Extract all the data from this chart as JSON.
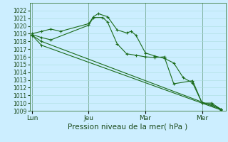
{
  "title": "",
  "xlabel": "Pression niveau de la mer( hPa )",
  "background_color": "#cceeff",
  "grid_color": "#aadddd",
  "line_color": "#1a6b1a",
  "vline_color": "#336633",
  "ylim": [
    1009,
    1023
  ],
  "yticks": [
    1009,
    1010,
    1011,
    1012,
    1013,
    1014,
    1015,
    1016,
    1017,
    1018,
    1019,
    1020,
    1021,
    1022
  ],
  "xtick_labels": [
    "Lun",
    "Jeu",
    "Mar",
    "Mer"
  ],
  "xtick_positions": [
    0,
    12,
    24,
    36
  ],
  "xlim": [
    -0.5,
    41
  ],
  "vline_positions": [
    0,
    12,
    24,
    36
  ],
  "line1_x": [
    0,
    2,
    4,
    6,
    12,
    13,
    14,
    16,
    18,
    20,
    21,
    22,
    24,
    26,
    28,
    30,
    32,
    34,
    36,
    38,
    40
  ],
  "line1_y": [
    1019.0,
    1019.3,
    1019.6,
    1019.3,
    1020.3,
    1021.2,
    1021.6,
    1021.2,
    1019.5,
    1019.1,
    1019.3,
    1018.8,
    1016.5,
    1016.1,
    1015.8,
    1015.2,
    1013.3,
    1012.6,
    1010.0,
    1009.8,
    1009.2
  ],
  "line2_x": [
    0,
    2,
    4,
    12,
    13,
    15,
    16,
    18,
    20,
    22,
    24,
    26,
    28,
    30,
    34,
    36,
    38,
    40
  ],
  "line2_y": [
    1018.9,
    1018.5,
    1018.2,
    1020.1,
    1021.1,
    1021.1,
    1020.5,
    1017.7,
    1016.4,
    1016.2,
    1016.0,
    1015.9,
    1016.0,
    1012.5,
    1012.9,
    1010.0,
    1010.0,
    1009.2
  ],
  "line3_x": [
    0,
    2,
    40
  ],
  "line3_y": [
    1018.8,
    1018.0,
    1009.2
  ],
  "line4_x": [
    0,
    2,
    40
  ],
  "line4_y": [
    1018.8,
    1017.5,
    1009.1
  ],
  "figsize": [
    3.2,
    2.0
  ],
  "dpi": 100,
  "ylabel_fontsize": 5.5,
  "xlabel_fontsize": 7.5,
  "xtick_fontsize": 6.5,
  "linewidth": 0.8,
  "markersize": 3.5
}
